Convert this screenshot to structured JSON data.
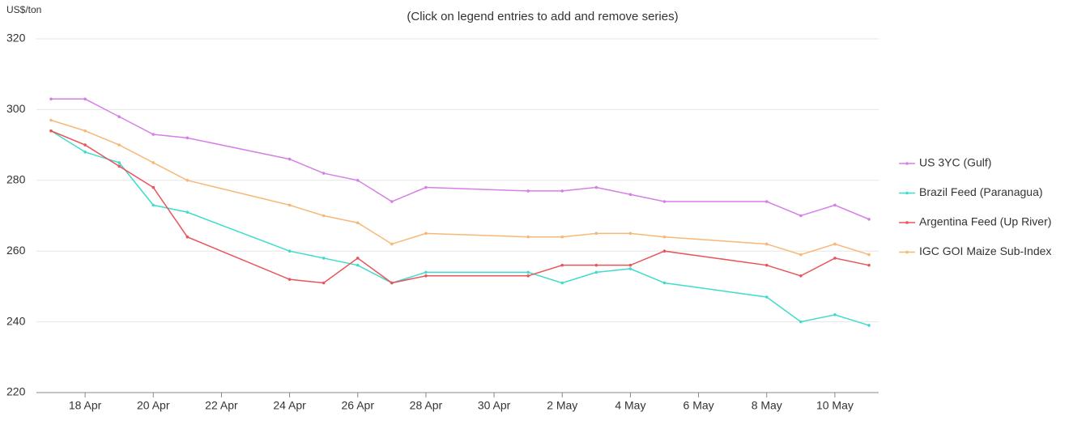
{
  "chart_data": {
    "type": "line",
    "y_label": "US$/ton",
    "subtitle": "(Click on legend entries to add and remove series)",
    "x": [
      "17 Apr",
      "18 Apr",
      "19 Apr",
      "20 Apr",
      "21 Apr",
      "24 Apr",
      "25 Apr",
      "26 Apr",
      "27 Apr",
      "28 Apr",
      "1 May",
      "2 May",
      "3 May",
      "4 May",
      "5 May",
      "8 May",
      "9 May",
      "10 May",
      "11 May"
    ],
    "xlim": [
      "17 Apr",
      "11 May"
    ],
    "xticks": [
      "18 Apr",
      "20 Apr",
      "22 Apr",
      "24 Apr",
      "26 Apr",
      "28 Apr",
      "30 Apr",
      "2 May",
      "4 May",
      "6 May",
      "8 May",
      "10 May"
    ],
    "ylim": [
      220,
      320
    ],
    "yticks": [
      220,
      240,
      260,
      280,
      300,
      320
    ],
    "grid": true,
    "legend": "right",
    "series": [
      {
        "name": "US 3YC (Gulf)",
        "color": "#d67fe6",
        "values": [
          303,
          303,
          298,
          293,
          292,
          286,
          282,
          280,
          274,
          278,
          277,
          277,
          278,
          276,
          274,
          274,
          270,
          273,
          269
        ]
      },
      {
        "name": "Brazil Feed (Paranagua)",
        "color": "#3fdccb",
        "values": [
          294,
          288,
          285,
          273,
          271,
          260,
          258,
          256,
          251,
          254,
          254,
          251,
          254,
          255,
          251,
          247,
          240,
          242,
          239
        ]
      },
      {
        "name": "Argentina Feed (Up River)",
        "color": "#e8555a",
        "values": [
          294,
          290,
          284,
          278,
          264,
          252,
          251,
          258,
          251,
          253,
          253,
          256,
          256,
          256,
          260,
          256,
          253,
          258,
          256
        ]
      },
      {
        "name": "IGC GOI Maize Sub-Index",
        "color": "#f7b877",
        "values": [
          297,
          294,
          290,
          285,
          280,
          273,
          270,
          268,
          262,
          265,
          264,
          264,
          265,
          265,
          264,
          262,
          259,
          262,
          259
        ]
      }
    ]
  }
}
